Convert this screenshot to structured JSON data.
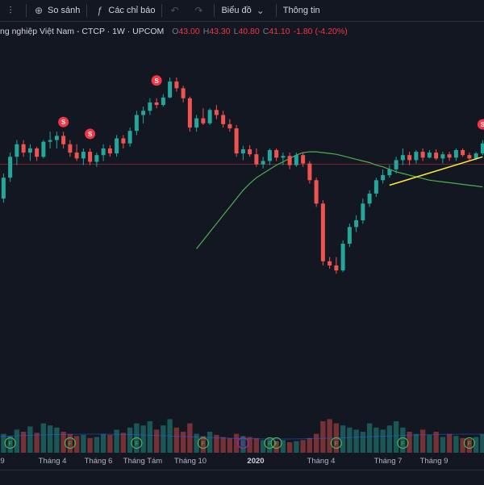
{
  "toolbar": {
    "compare_label": "So sánh",
    "indicators_label": "Các chỉ báo",
    "chart_type_label": "Biểu đồ",
    "info_label": "Thông tin"
  },
  "legend": {
    "symbol_title": "ng nghiệp Việt Nam - CTCP · 1W · UPCOM",
    "open_label": "O",
    "open": "43.00",
    "high_label": "H",
    "high": "43.30",
    "low_label": "L",
    "low": "40.80",
    "close_label": "C",
    "close": "41.10",
    "change": "-1.80 (-4.20%)"
  },
  "colors": {
    "up": "#26a69a",
    "down": "#ef5350",
    "ma": "#4caf50",
    "trend": "#ffeb3b",
    "bg": "#131722",
    "price_line": "#f23645"
  },
  "axis": {
    "labels": [
      "9",
      "Tháng 4",
      "Tháng 6",
      "Tháng Tám",
      "Tháng 10",
      "2020",
      "Tháng 4",
      "Tháng 7",
      "Tháng 9"
    ]
  },
  "markers": {
    "split": "S",
    "dividend": "F",
    "earnings": "E"
  },
  "chart_data": {
    "type": "candlestick",
    "candles": [
      [
        38,
        39,
        36,
        37
      ],
      [
        37,
        40,
        36.5,
        39.5
      ],
      [
        39.5,
        42.5,
        39,
        42
      ],
      [
        42,
        44,
        41,
        43.5
      ],
      [
        43.5,
        44,
        42,
        42.5
      ],
      [
        42.5,
        43.5,
        41.5,
        43
      ],
      [
        43,
        43.2,
        41.5,
        42
      ],
      [
        42,
        44,
        41.8,
        43.8
      ],
      [
        43.8,
        45,
        43,
        44
      ],
      [
        44,
        45,
        43,
        44.5
      ],
      [
        44.5,
        45,
        43,
        43.5
      ],
      [
        43.5,
        44,
        42,
        42.5
      ],
      [
        42.5,
        43.5,
        41.5,
        41.8
      ],
      [
        41.8,
        43,
        41,
        42.6
      ],
      [
        42.6,
        43,
        41,
        41.4
      ],
      [
        41.4,
        42.5,
        40.8,
        42.2
      ],
      [
        42.2,
        43.5,
        41.5,
        43
      ],
      [
        43,
        43.4,
        42,
        42.4
      ],
      [
        42.4,
        44.6,
        42,
        44.2
      ],
      [
        44.2,
        44.6,
        43,
        43.6
      ],
      [
        43.6,
        45.5,
        43.2,
        45.1
      ],
      [
        45.1,
        47.5,
        44.6,
        47
      ],
      [
        47,
        48,
        46,
        47.5
      ],
      [
        47.5,
        49,
        47,
        48.5
      ],
      [
        48.5,
        49,
        47.8,
        48.2
      ],
      [
        48.2,
        49.5,
        48,
        49.1
      ],
      [
        49.1,
        51.5,
        49,
        51
      ],
      [
        51,
        51.5,
        49.8,
        50.2
      ],
      [
        50.2,
        50.5,
        48.5,
        49
      ],
      [
        49,
        49.2,
        45,
        45.5
      ],
      [
        45.5,
        47,
        45,
        46.6
      ],
      [
        46.6,
        47.8,
        45.8,
        46
      ],
      [
        46,
        47.8,
        45.8,
        47.6
      ],
      [
        47.6,
        48.2,
        46.5,
        47
      ],
      [
        47,
        47.5,
        45.5,
        45.9
      ],
      [
        45.9,
        46.5,
        45,
        45.4
      ],
      [
        45.4,
        45.8,
        42,
        42.4
      ],
      [
        42.4,
        43.3,
        41.6,
        42.9
      ],
      [
        42.9,
        43.4,
        42,
        42.3
      ],
      [
        42.3,
        43,
        40.8,
        41.1
      ],
      [
        41.1,
        42,
        40.6,
        41.5
      ],
      [
        41.5,
        43,
        41,
        42.8
      ],
      [
        42.8,
        43,
        41.5,
        41.9
      ],
      [
        41.9,
        42.5,
        41,
        42.1
      ],
      [
        42.1,
        42.5,
        40.5,
        41
      ],
      [
        41,
        42.5,
        40.8,
        42.2
      ],
      [
        42.2,
        42.5,
        40.8,
        41.2
      ],
      [
        41.2,
        41.5,
        38.8,
        39.2
      ],
      [
        39.2,
        39.5,
        36,
        36.4
      ],
      [
        36.4,
        36.8,
        29,
        29.5
      ],
      [
        29.5,
        30,
        28.6,
        29
      ],
      [
        29,
        30,
        28,
        28.4
      ],
      [
        28.4,
        32,
        28.2,
        31.6
      ],
      [
        31.6,
        34,
        31.2,
        33.6
      ],
      [
        33.6,
        35,
        33,
        34.4
      ],
      [
        34.4,
        37,
        34,
        36.4
      ],
      [
        36.4,
        38,
        36,
        37.6
      ],
      [
        37.6,
        39.5,
        37.2,
        39.2
      ],
      [
        39.2,
        40.5,
        38.8,
        39.8
      ],
      [
        39.8,
        41,
        39.5,
        40.5
      ],
      [
        40.5,
        42,
        40,
        41.6
      ],
      [
        41.6,
        43,
        41,
        42.2
      ],
      [
        42.2,
        42.6,
        41,
        41.6
      ],
      [
        41.6,
        42.8,
        41.2,
        42.6
      ],
      [
        42.6,
        43,
        41.5,
        41.9
      ],
      [
        41.9,
        42.8,
        41.8,
        42.5
      ],
      [
        42.5,
        42.9,
        41.6,
        41.8
      ],
      [
        41.8,
        42.6,
        41.2,
        42.3
      ],
      [
        42.3,
        42.6,
        41.5,
        41.9
      ],
      [
        41.9,
        43,
        41.5,
        42.8
      ],
      [
        42.8,
        43,
        42,
        42.2
      ],
      [
        42.2,
        42.5,
        41.5,
        41.8
      ],
      [
        41.8,
        42.6,
        41.6,
        42.4
      ],
      [
        42.4,
        44,
        42.2,
        43.6
      ]
    ],
    "volume": [
      14,
      18,
      16,
      22,
      20,
      25,
      19,
      28,
      26,
      24,
      20,
      18,
      16,
      17,
      14,
      15,
      18,
      17,
      22,
      19,
      24,
      28,
      26,
      30,
      22,
      26,
      32,
      24,
      20,
      28,
      18,
      16,
      20,
      17,
      15,
      14,
      18,
      16,
      15,
      14,
      12,
      13,
      11,
      12,
      10,
      11,
      12,
      14,
      18,
      30,
      32,
      28,
      26,
      24,
      22,
      20,
      28,
      24,
      22,
      26,
      30,
      24,
      20,
      18,
      22,
      17,
      20,
      15,
      18,
      16,
      14,
      13,
      15,
      18
    ],
    "ma": [
      null,
      null,
      null,
      null,
      null,
      null,
      null,
      null,
      null,
      null,
      null,
      null,
      null,
      null,
      null,
      null,
      null,
      null,
      null,
      null,
      null,
      null,
      null,
      null,
      null,
      null,
      null,
      null,
      null,
      null,
      31,
      32,
      33,
      34,
      35,
      36,
      37,
      38,
      38.8,
      39.5,
      40,
      40.5,
      41,
      41.4,
      41.8,
      42.2,
      42.5,
      42.6,
      42.6,
      42.5,
      42.4,
      42.3,
      42.1,
      41.9,
      41.7,
      41.5,
      41.3,
      41,
      40.8,
      40.5,
      40.2,
      40,
      39.8,
      39.6,
      39.4,
      39.2,
      39.1,
      39.0,
      38.9,
      38.8,
      38.7,
      38.6,
      38.5,
      38.4
    ],
    "trendline": [
      [
        59,
        38.6
      ],
      [
        73,
        42
      ]
    ],
    "price_line": 41.1,
    "ylim": [
      26,
      54
    ]
  }
}
